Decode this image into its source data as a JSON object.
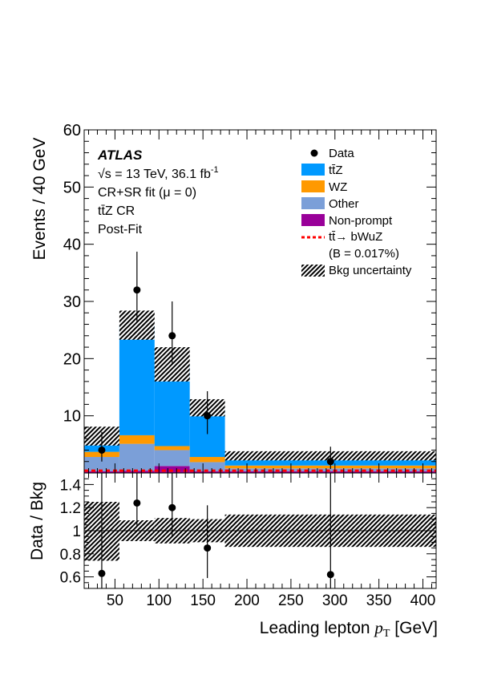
{
  "chart_data": [
    {
      "type": "bar",
      "panel": "main",
      "stacked": true,
      "ylabel": "Events / 40 GeV",
      "xlim": [
        15,
        415
      ],
      "ylim": [
        0,
        60
      ],
      "yticks": [
        10,
        20,
        30,
        40,
        50,
        60
      ],
      "bins": [
        [
          15,
          55
        ],
        [
          55,
          95
        ],
        [
          95,
          135
        ],
        [
          135,
          175
        ],
        [
          175,
          415
        ]
      ],
      "series": [
        {
          "name": "Non-prompt",
          "color": "#990099",
          "values": [
            0.3,
            0.4,
            1.2,
            0.3,
            0.3
          ]
        },
        {
          "name": "Other",
          "color": "#7b9fd8",
          "values": [
            2.5,
            4.7,
            2.8,
            1.6,
            0.5
          ]
        },
        {
          "name": "WZ",
          "color": "#ff9900",
          "values": [
            0.9,
            1.5,
            0.7,
            0.9,
            0.5
          ]
        },
        {
          "name": "tt̄Z",
          "color": "#0099ff",
          "values": [
            2.6,
            19.2,
            14.2,
            8.3,
            1.9
          ]
        }
      ],
      "bkg_uncertainty": {
        "name": "Bkg uncertainty",
        "low": [
          4.8,
          23.3,
          16.0,
          9.9,
          2.2
        ],
        "high": [
          8.1,
          28.4,
          22.0,
          12.9,
          3.8
        ]
      },
      "signal": {
        "name": "tt̄→ bWuZ",
        "note": "(B = 0.017%)",
        "color": "#ff0000",
        "values": [
          0.4,
          0.4,
          0.4,
          0.4,
          0.4
        ]
      },
      "data": {
        "name": "Data",
        "x": [
          35,
          75,
          115,
          155,
          295
        ],
        "y": [
          4,
          32,
          24,
          10,
          2
        ],
        "err_low": [
          2.0,
          5.6,
          4.9,
          3.2,
          1.3
        ],
        "err_high": [
          3.2,
          6.7,
          6.0,
          4.3,
          2.6
        ]
      },
      "legend_position": "top-right",
      "annotations": {
        "experiment": "ATLAS",
        "energy_prefix": "√s = 13 TeV, 36.1 fb",
        "energy_sup": "-1",
        "fit_label": "CR+SR fit (μ = 0)",
        "region": "tt̄Z CR",
        "stage": "Post-Fit"
      }
    },
    {
      "type": "scatter",
      "panel": "ratio",
      "ylabel": "Data / Bkg",
      "xlabel": "Leading lepton pT [GeV]",
      "xlim": [
        15,
        415
      ],
      "ylim": [
        0.5,
        1.5
      ],
      "yticks": [
        0.6,
        0.8,
        1,
        1.2,
        1.4
      ],
      "ytick_labels": [
        "0.6",
        "0.8",
        "1",
        "1.2",
        "1.4"
      ],
      "xticks": [
        50,
        100,
        150,
        200,
        250,
        300,
        350,
        400
      ],
      "x": [
        35,
        75,
        115,
        155,
        295
      ],
      "y": [
        0.63,
        1.24,
        1.2,
        0.85,
        0.62
      ],
      "err_low": [
        0.6,
        0.2,
        0.25,
        0.26,
        0.62
      ],
      "err_high": [
        0.87,
        0.26,
        0.3,
        0.37,
        0.9
      ],
      "unc_band": {
        "low": [
          0.74,
          0.91,
          0.89,
          0.9,
          0.86
        ],
        "high": [
          1.25,
          1.09,
          1.11,
          1.1,
          1.14
        ]
      }
    }
  ]
}
